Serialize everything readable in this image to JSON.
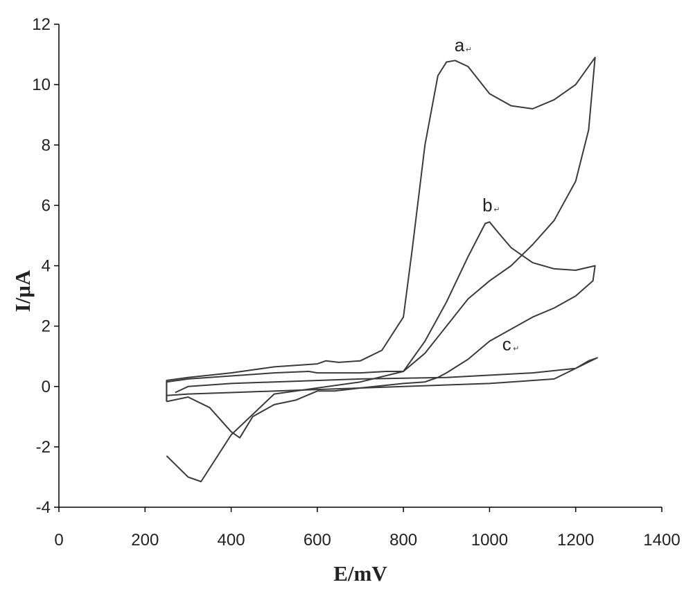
{
  "chart_data": {
    "type": "line",
    "xlabel": "E/mV",
    "ylabel": "I/μA",
    "xlim": [
      0,
      1400
    ],
    "ylim": [
      -4,
      12
    ],
    "xticks": [
      0,
      200,
      400,
      600,
      800,
      1000,
      1200,
      1400
    ],
    "yticks": [
      -4,
      -2,
      0,
      2,
      4,
      6,
      8,
      10,
      12
    ],
    "grid": false,
    "legend": "none",
    "line_color": "#3a3a3a",
    "series": [
      {
        "name": "a",
        "label_at": [
          930,
          11.1
        ],
        "x": [
          250,
          250,
          300,
          400,
          500,
          550,
          600,
          620,
          650,
          700,
          750,
          800,
          820,
          850,
          880,
          900,
          920,
          950,
          1000,
          1050,
          1100,
          1150,
          1200,
          1245,
          1230,
          1200,
          1150,
          1100,
          1050,
          1000,
          950,
          900,
          850,
          800,
          700,
          600,
          500,
          400,
          330,
          300,
          250
        ],
        "y": [
          -0.5,
          0.2,
          0.3,
          0.45,
          0.65,
          0.7,
          0.75,
          0.85,
          0.8,
          0.85,
          1.2,
          2.3,
          4.5,
          8.0,
          10.3,
          10.75,
          10.8,
          10.6,
          9.7,
          9.3,
          9.2,
          9.5,
          10.0,
          10.9,
          8.5,
          6.8,
          5.5,
          4.7,
          4.0,
          3.5,
          2.9,
          2.0,
          1.1,
          0.5,
          0.15,
          -0.05,
          -0.25,
          -1.6,
          -3.15,
          -3.0,
          -2.3
        ]
      },
      {
        "name": "b",
        "label_at": [
          995,
          5.8
        ],
        "x": [
          250,
          250,
          300,
          400,
          500,
          580,
          600,
          700,
          760,
          800,
          850,
          900,
          950,
          990,
          1000,
          1020,
          1050,
          1100,
          1150,
          1200,
          1245,
          1240,
          1200,
          1150,
          1100,
          1050,
          1000,
          950,
          900,
          880,
          860,
          850,
          800,
          700,
          640,
          600,
          550,
          500,
          450,
          420,
          400,
          350,
          300,
          250
        ],
        "y": [
          -0.5,
          0.15,
          0.25,
          0.35,
          0.45,
          0.5,
          0.45,
          0.45,
          0.5,
          0.5,
          1.5,
          2.8,
          4.3,
          5.4,
          5.45,
          5.1,
          4.6,
          4.1,
          3.9,
          3.85,
          4.0,
          3.5,
          3.0,
          2.6,
          2.3,
          1.9,
          1.5,
          0.9,
          0.45,
          0.3,
          0.2,
          0.15,
          0.1,
          -0.05,
          -0.15,
          -0.15,
          -0.45,
          -0.6,
          -1.0,
          -1.7,
          -1.5,
          -0.7,
          -0.35,
          -0.5
        ]
      },
      {
        "name": "c",
        "label_at": [
          1040,
          1.2
        ],
        "x": [
          250,
          250,
          300,
          400,
          600,
          800,
          1000,
          1150,
          1250,
          1230,
          1200,
          1100,
          900,
          700,
          500,
          400,
          300,
          270
        ],
        "y": [
          -0.5,
          -0.3,
          -0.25,
          -0.2,
          -0.1,
          0.0,
          0.1,
          0.25,
          0.95,
          0.85,
          0.6,
          0.45,
          0.3,
          0.25,
          0.15,
          0.1,
          0.0,
          -0.2
        ]
      }
    ]
  }
}
